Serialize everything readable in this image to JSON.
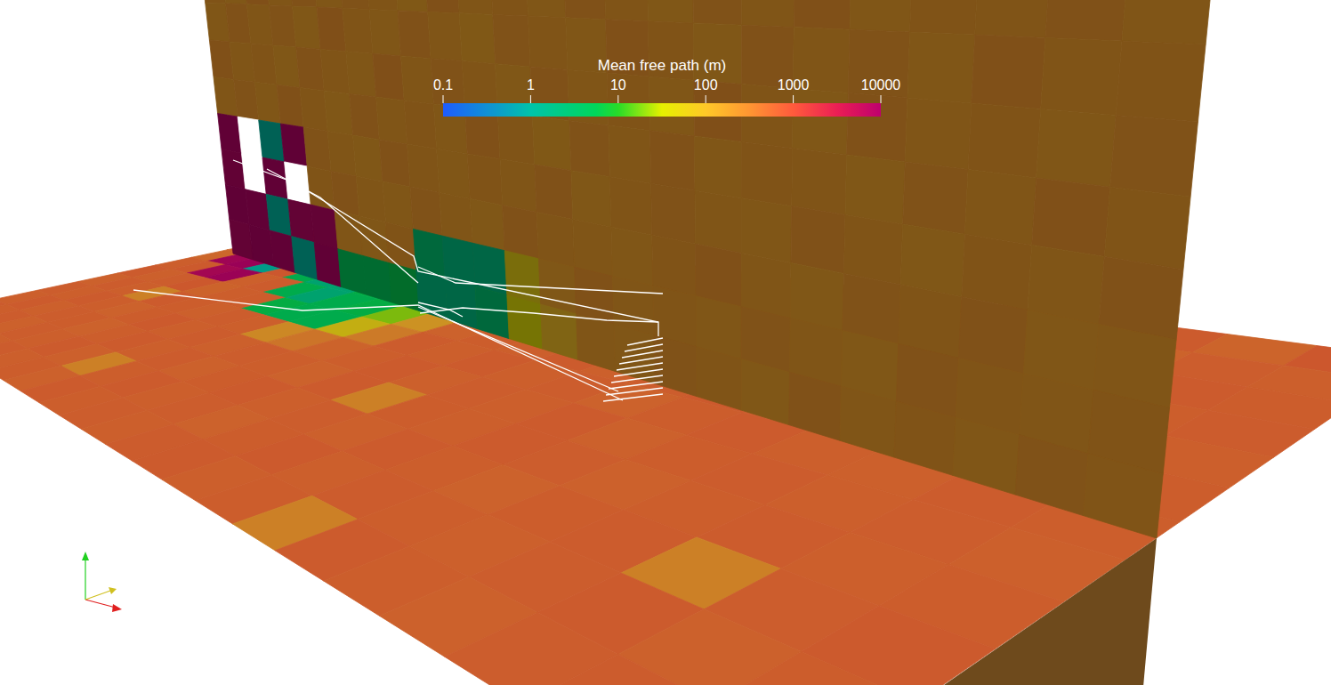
{
  "chart_data": {
    "type": "heatmap",
    "title": "Mean free path (m)",
    "log": true,
    "colorbar_range": [
      0.1,
      10000
    ],
    "colorbar_ticks": [
      0.1,
      1,
      10,
      100,
      1000,
      10000
    ],
    "floor_cells": [
      [
        620,
        540,
        710,
        480,
        650,
        590,
        530,
        700,
        610,
        560,
        680,
        500,
        640,
        590,
        720,
        550,
        610,
        670,
        520,
        600,
        580,
        640,
        510,
        690
      ],
      [
        560,
        680,
        590,
        630,
        520,
        700,
        580,
        610,
        660,
        540,
        600,
        710,
        560,
        620,
        590,
        650,
        530,
        600,
        690,
        570,
        640,
        520,
        610,
        580
      ],
      [
        650,
        590,
        520,
        690,
        600,
        560,
        640,
        580,
        530,
        670,
        610,
        560,
        700,
        540,
        620,
        580,
        660,
        590,
        540,
        610,
        680,
        560,
        630,
        600
      ],
      [
        520,
        9000,
        null,
        8500,
        600,
        2,
        2,
        3,
        5,
        6,
        40,
        480,
        560,
        620,
        510,
        680,
        590,
        540,
        630,
        600,
        560,
        650,
        590,
        620
      ],
      [
        480,
        8000,
        9500,
        1,
        700,
        5,
        2,
        2,
        6,
        6,
        30,
        200,
        610,
        560,
        640,
        590,
        530,
        620,
        570,
        650,
        600,
        540,
        610,
        580
      ],
      [
        590,
        650,
        7000,
        9000,
        560,
        620,
        5,
        2,
        5,
        6,
        20,
        150,
        540,
        600,
        580,
        630,
        560,
        610,
        650,
        570,
        620,
        590,
        540,
        600
      ],
      [
        640,
        560,
        610,
        680,
        520,
        590,
        600,
        6,
        5,
        5,
        60,
        300,
        620,
        570,
        640,
        580,
        610,
        540,
        600,
        630,
        580,
        560,
        620,
        590
      ],
      [
        550,
        620,
        580,
        250,
        640,
        600,
        560,
        610,
        580,
        200,
        350,
        520,
        590,
        630,
        560,
        610,
        580,
        640,
        550,
        600,
        620,
        570,
        610,
        560
      ],
      [
        610,
        570,
        640,
        590,
        530,
        600,
        650,
        580,
        620,
        560,
        610,
        590,
        540,
        630,
        250,
        600,
        570,
        640,
        610,
        550,
        590,
        620,
        580,
        600
      ],
      [
        580,
        640,
        560,
        610,
        600,
        530,
        590,
        640,
        570,
        620,
        550,
        600,
        630,
        580,
        610,
        560,
        640,
        590,
        540,
        600,
        620,
        250,
        610,
        650
      ],
      [
        630,
        590,
        620,
        550,
        610,
        580,
        640,
        560,
        250,
        590,
        630,
        570,
        610,
        540,
        600,
        650,
        580,
        620,
        590,
        560,
        610,
        640,
        550,
        600
      ],
      [
        570,
        610,
        590,
        640,
        560,
        620,
        580,
        600,
        550,
        630,
        590,
        610,
        570,
        620,
        640,
        580,
        600,
        250,
        630,
        590,
        550,
        610,
        620,
        580
      ]
    ],
    "wall_cells": [
      [
        220,
        180,
        260,
        200,
        240,
        190,
        230,
        210,
        170,
        250,
        200,
        220,
        190,
        240,
        210,
        180,
        230,
        200,
        250,
        190,
        220,
        210,
        240,
        200
      ],
      [
        190,
        240,
        200,
        230,
        180,
        260,
        210,
        190,
        240,
        200,
        170,
        230,
        210,
        190,
        250,
        220,
        180,
        240,
        200,
        230,
        190,
        250,
        210,
        220
      ],
      [
        250,
        200,
        220,
        180,
        240,
        210,
        190,
        260,
        200,
        230,
        210,
        180,
        240,
        200,
        220,
        190,
        260,
        210,
        180,
        240,
        200,
        220,
        190,
        230
      ],
      [
        200,
        230,
        190,
        250,
        210,
        180,
        240,
        200,
        220,
        190,
        250,
        210,
        170,
        230,
        200,
        240,
        190,
        220,
        210,
        180,
        230,
        200,
        250,
        210
      ],
      [
        9000,
        null,
        1,
        9500,
        230,
        200,
        180,
        240,
        210,
        190,
        220,
        200,
        240,
        180,
        210,
        230,
        200,
        190,
        240,
        210,
        180,
        220,
        200,
        240
      ],
      [
        8500,
        null,
        9000,
        null,
        210,
        240,
        200,
        190,
        230,
        200,
        180,
        240,
        210,
        200,
        190,
        220,
        250,
        200,
        180,
        230,
        210,
        240,
        190,
        200
      ],
      [
        9500,
        9000,
        1,
        8000,
        8000,
        200,
        190,
        220,
        3,
        2,
        2,
        60,
        180,
        240,
        200,
        210,
        190,
        230,
        200,
        180,
        240,
        210,
        200,
        220
      ],
      [
        8000,
        9500,
        9000,
        1,
        9000,
        5,
        5,
        6,
        2,
        2,
        3,
        40,
        100,
        200,
        190,
        230,
        210,
        180,
        240,
        200,
        220,
        190,
        230,
        210
      ]
    ]
  }
}
